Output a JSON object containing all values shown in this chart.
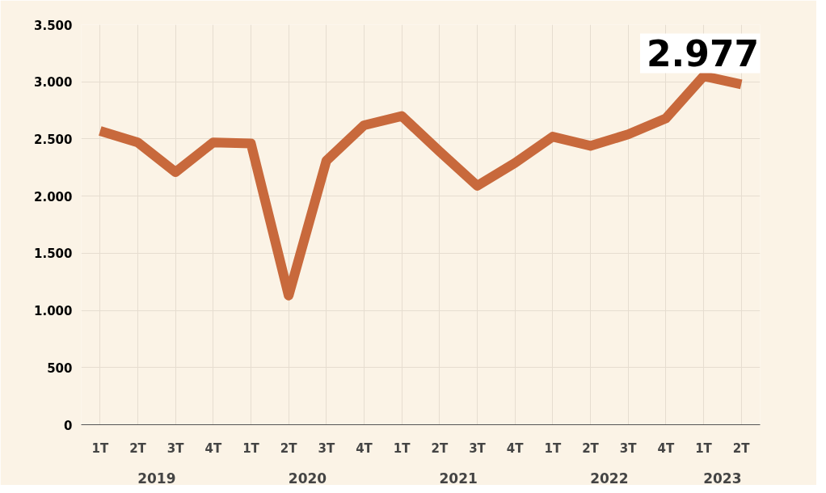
{
  "chart_data": {
    "type": "line",
    "categories": [
      "1T",
      "2T",
      "3T",
      "4T",
      "1T",
      "2T",
      "3T",
      "4T",
      "1T",
      "2T",
      "3T",
      "4T",
      "1T",
      "2T",
      "3T",
      "4T",
      "1T",
      "2T"
    ],
    "annotations": [
      "2019",
      "2020",
      "2021",
      "2022",
      "2023"
    ],
    "series": [
      {
        "color": "#c8693c",
        "values": [
          2570,
          2470,
          2210,
          2470,
          2460,
          1130,
          2310,
          2620,
          2700,
          2390,
          2090,
          2290,
          2520,
          2440,
          2540,
          2680,
          3050,
          2977
        ],
        "value_labels": [
          null,
          null,
          null,
          null,
          null,
          null,
          null,
          null,
          null,
          null,
          null,
          null,
          null,
          null,
          null,
          null,
          null,
          "2.977"
        ]
      }
    ],
    "ylim": [
      0,
      3500
    ],
    "yticks": [
      {
        "value": 0,
        "label": "0"
      },
      {
        "value": 500,
        "label": "500"
      },
      {
        "value": 1000,
        "label": "1.000"
      },
      {
        "value": 1500,
        "label": "1.500"
      },
      {
        "value": 2000,
        "label": "2.000"
      },
      {
        "value": 2500,
        "label": "2.500"
      },
      {
        "value": 3000,
        "label": "3.000"
      },
      {
        "value": 3500,
        "label": "3.500"
      }
    ],
    "grid": true
  }
}
